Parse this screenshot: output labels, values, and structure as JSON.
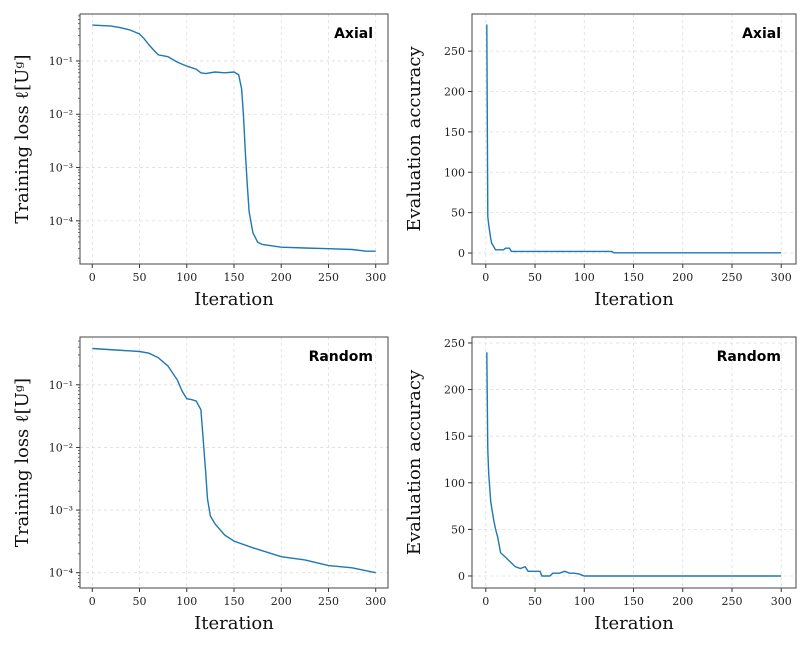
{
  "chart_data": [
    {
      "type": "line",
      "annotation": "Axial",
      "xlabel": "Iteration",
      "ylabel": "Training loss ℓ[Uᵍ]",
      "yscale": "log",
      "xlim": [
        -13,
        313
      ],
      "ylim": [
        1.55e-05,
        0.76
      ],
      "xticks": [
        0,
        50,
        100,
        150,
        200,
        250,
        300
      ],
      "yticks": [
        0.0001,
        0.001,
        0.01,
        0.1
      ],
      "ytick_labels": [
        "10⁻⁴",
        "10⁻³",
        "10⁻²",
        "10⁻¹"
      ],
      "grid": true,
      "color": "#1f77b4",
      "x": [
        0,
        20,
        30,
        40,
        50,
        55,
        60,
        65,
        70,
        80,
        90,
        100,
        110,
        115,
        120,
        130,
        140,
        150,
        155,
        158,
        160,
        162,
        164,
        166,
        170,
        175,
        180,
        190,
        200,
        225,
        250,
        275,
        290,
        300
      ],
      "y": [
        0.47,
        0.45,
        0.42,
        0.38,
        0.32,
        0.26,
        0.2,
        0.16,
        0.13,
        0.12,
        0.095,
        0.08,
        0.07,
        0.06,
        0.058,
        0.062,
        0.06,
        0.062,
        0.055,
        0.03,
        0.01,
        0.002,
        0.0005,
        0.00015,
        6e-05,
        4e-05,
        3.6e-05,
        3.4e-05,
        3.2e-05,
        3.1e-05,
        3e-05,
        2.9e-05,
        2.7e-05,
        2.7e-05
      ]
    },
    {
      "type": "line",
      "annotation": "Axial",
      "xlabel": "Iteration",
      "ylabel": "Evaluation accuracy",
      "yscale": "linear",
      "xlim": [
        -14,
        315
      ],
      "ylim": [
        -13.6,
        296
      ],
      "xticks": [
        0,
        50,
        100,
        150,
        200,
        250,
        300
      ],
      "yticks": [
        0,
        50,
        100,
        150,
        200,
        250
      ],
      "ytick_labels": [
        "0",
        "50",
        "100",
        "150",
        "200",
        "250"
      ],
      "grid": true,
      "color": "#1f77b4",
      "x": [
        1,
        2,
        3,
        5,
        6,
        8,
        10,
        18,
        20,
        24,
        26,
        128,
        130,
        300
      ],
      "y": [
        283,
        45,
        35,
        18,
        12,
        8,
        4,
        4,
        6,
        6,
        2,
        2,
        0.3,
        0.3
      ]
    },
    {
      "type": "line",
      "annotation": "Random",
      "xlabel": "Iteration",
      "ylabel": "Training loss ℓ[Uᵍ]",
      "yscale": "log",
      "xlim": [
        -13,
        313
      ],
      "ylim": [
        5.7e-05,
        0.58
      ],
      "xticks": [
        0,
        50,
        100,
        150,
        200,
        250,
        300
      ],
      "yticks": [
        0.0001,
        0.001,
        0.01,
        0.1
      ],
      "ytick_labels": [
        "10⁻⁴",
        "10⁻³",
        "10⁻²",
        "10⁻¹"
      ],
      "grid": true,
      "color": "#1f77b4",
      "x": [
        0,
        25,
        50,
        60,
        70,
        80,
        90,
        95,
        100,
        105,
        110,
        115,
        118,
        120,
        122,
        125,
        130,
        140,
        150,
        170,
        200,
        225,
        250,
        275,
        300
      ],
      "y": [
        0.38,
        0.36,
        0.34,
        0.32,
        0.27,
        0.2,
        0.12,
        0.08,
        0.06,
        0.058,
        0.055,
        0.04,
        0.01,
        0.004,
        0.0015,
        0.0008,
        0.0006,
        0.0004,
        0.00032,
        0.00025,
        0.00018,
        0.00016,
        0.00013,
        0.00012,
        0.0001
      ]
    },
    {
      "type": "line",
      "annotation": "Random",
      "xlabel": "Iteration",
      "ylabel": "Evaluation accuracy",
      "yscale": "linear",
      "xlim": [
        -14,
        315
      ],
      "ylim": [
        -12.9,
        256.4
      ],
      "xticks": [
        0,
        50,
        100,
        150,
        200,
        250,
        300
      ],
      "yticks": [
        0,
        50,
        100,
        150,
        200,
        250
      ],
      "ytick_labels": [
        "0",
        "50",
        "100",
        "150",
        "200",
        "250"
      ],
      "grid": true,
      "color": "#1f77b4",
      "x": [
        1,
        2,
        3,
        5,
        8,
        10,
        12,
        15,
        20,
        25,
        30,
        35,
        40,
        43,
        50,
        55,
        57,
        65,
        68,
        75,
        80,
        85,
        90,
        95,
        100,
        300
      ],
      "y": [
        240,
        135,
        110,
        80,
        60,
        50,
        42,
        25,
        20,
        15,
        10,
        8,
        10,
        5,
        5,
        5,
        0,
        0,
        3,
        3,
        5,
        3,
        3,
        2,
        0,
        0
      ]
    }
  ]
}
